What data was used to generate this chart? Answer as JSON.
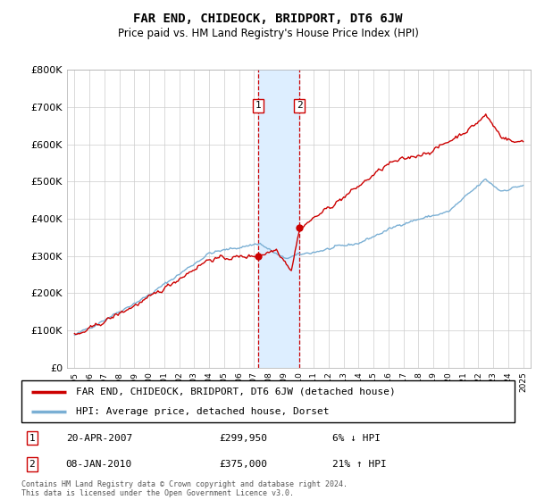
{
  "title": "FAR END, CHIDEOCK, BRIDPORT, DT6 6JW",
  "subtitle": "Price paid vs. HM Land Registry's House Price Index (HPI)",
  "ylim": [
    0,
    800000
  ],
  "yticks": [
    0,
    100000,
    200000,
    300000,
    400000,
    500000,
    600000,
    700000,
    800000
  ],
  "ytick_labels": [
    "£0",
    "£100K",
    "£200K",
    "£300K",
    "£400K",
    "£500K",
    "£600K",
    "£700K",
    "£800K"
  ],
  "xlim_start": 1994.5,
  "xlim_end": 2025.5,
  "sale1_x": 2007.3,
  "sale1_y": 299950,
  "sale2_x": 2010.05,
  "sale2_y": 375000,
  "line_color_property": "#cc0000",
  "line_color_hpi": "#7aafd4",
  "shade_color": "#ddeeff",
  "legend_label_property": "FAR END, CHIDEOCK, BRIDPORT, DT6 6JW (detached house)",
  "legend_label_hpi": "HPI: Average price, detached house, Dorset",
  "sale1_date": "20-APR-2007",
  "sale1_price": "£299,950",
  "sale1_hpi": "6% ↓ HPI",
  "sale2_date": "08-JAN-2010",
  "sale2_price": "£375,000",
  "sale2_hpi": "21% ↑ HPI",
  "footer_line1": "Contains HM Land Registry data © Crown copyright and database right 2024.",
  "footer_line2": "This data is licensed under the Open Government Licence v3.0."
}
